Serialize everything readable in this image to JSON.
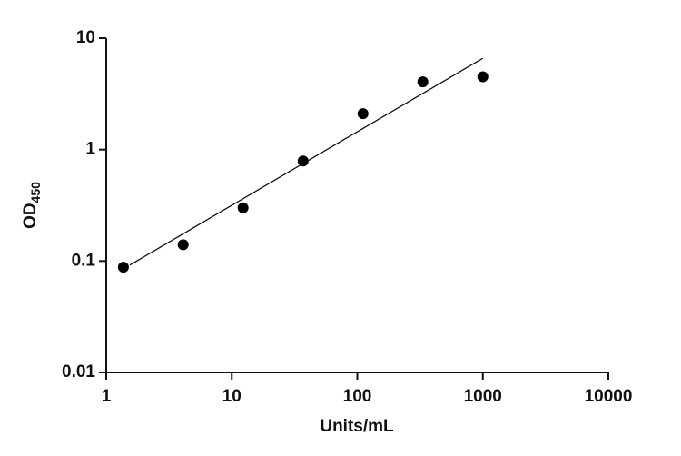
{
  "chart_data": {
    "type": "scatter",
    "xlabel": "Units/mL",
    "ylabel": "OD",
    "ylabel_sub": "450",
    "log_x": true,
    "log_y": true,
    "color": "#000000",
    "x": [
      1.37,
      4.1,
      12.3,
      37,
      111,
      333,
      1000
    ],
    "values": [
      0.088,
      0.14,
      0.3,
      0.79,
      2.1,
      4.05,
      4.5
    ],
    "fit": {
      "x": [
        1.54,
        1000
      ],
      "y": [
        0.092,
        6.6
      ]
    },
    "xlim": [
      1,
      10000
    ],
    "xticks": [
      1,
      10,
      100,
      1000,
      10000
    ],
    "ylim": [
      0.01,
      10
    ],
    "yticks": [
      0.01,
      0.1,
      1,
      10
    ]
  }
}
